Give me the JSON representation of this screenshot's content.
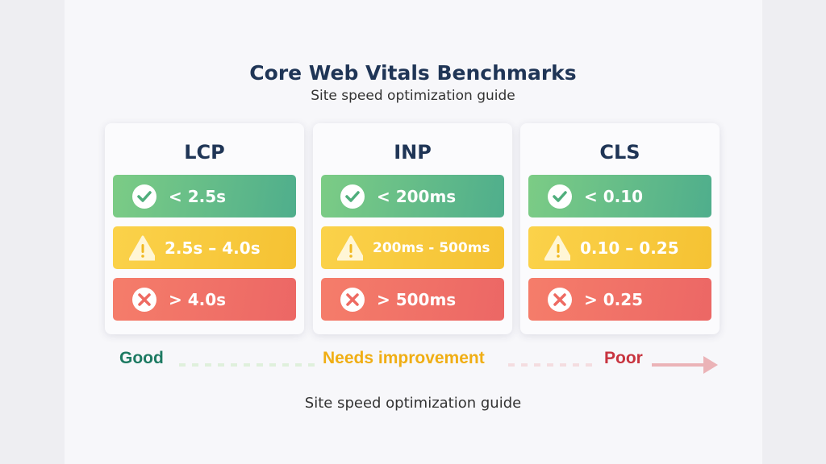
{
  "title": "Core Web Vitals Benchmarks",
  "subtitle": "Site speed optimization guide",
  "colors": {
    "good": "#4fae8c",
    "needs_improvement": "#f5c233",
    "poor": "#ec6765",
    "title": "#1f3556"
  },
  "cards": [
    {
      "name": "LCP",
      "good": "< 2.5s",
      "needs_improvement": "2.5s – 4.0s",
      "poor": "> 4.0s"
    },
    {
      "name": "INP",
      "good": "< 200ms",
      "needs_improvement": "200ms - 500ms",
      "poor": "> 500ms"
    },
    {
      "name": "CLS",
      "good": "< 0.10",
      "needs_improvement": "0.10 – 0.25",
      "poor": "> 0.25"
    }
  ],
  "legend": {
    "good": "Good",
    "needs_improvement": "Needs improvement",
    "poor": "Poor"
  },
  "footer": "Site speed optimization guide"
}
